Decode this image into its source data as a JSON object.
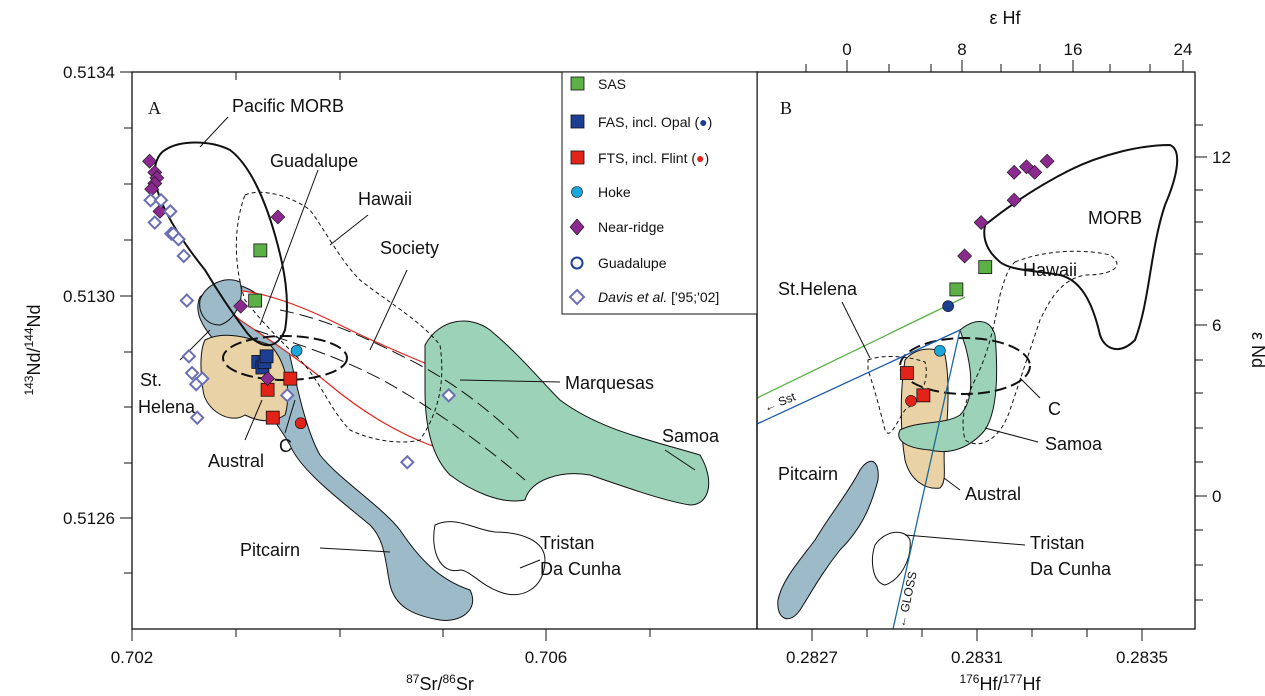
{
  "chart_data": [
    {
      "panel": "A",
      "type": "scatter",
      "xlabel_main": "Sr/",
      "xlabel_num_sup": "87",
      "xlabel_den_sup": "86",
      "xlabel_tail": "Sr",
      "ylabel_num_sup": "143",
      "ylabel_main": "Nd/",
      "ylabel_den_sup": "144",
      "ylabel_tail": "Nd",
      "xlim": [
        0.702,
        0.7067
      ],
      "ylim": [
        0.5124,
        0.5134
      ],
      "x_ticks": [
        "0.702",
        "0.706"
      ],
      "y_ticks": [
        "0.5126",
        "0.5130",
        "0.5134"
      ],
      "regions": [
        "Pacific MORB",
        "Guadalupe",
        "Hawaii",
        "Society",
        "St.",
        "Helena",
        "Austral",
        "C",
        "Marquesas",
        "Samoa",
        "Pitcairn",
        "Tristan",
        "Da Cunha"
      ],
      "series": [
        {
          "name": "SAS",
          "marker": "square",
          "color": "#5cb046",
          "points": [
            [
              0.70319,
              0.51299
            ],
            [
              0.70324,
              0.51308
            ]
          ]
        },
        {
          "name": "FAS, incl. Opal",
          "marker": "square",
          "color": "#1c3f94",
          "points": [
            [
              0.70322,
              0.51288
            ],
            [
              0.70326,
              0.51287
            ],
            [
              0.70328,
              0.51288
            ],
            [
              0.7033,
              0.51289
            ]
          ]
        },
        {
          "name": "FTS, incl. Flint",
          "marker": "square",
          "color": "#e2231a",
          "points": [
            [
              0.70331,
              0.51283
            ],
            [
              0.70353,
              0.51285
            ],
            [
              0.70336,
              0.51278
            ]
          ]
        },
        {
          "name": "Flint",
          "marker": "circle",
          "color": "#e2231a",
          "points": [
            [
              0.70363,
              0.51277
            ]
          ]
        },
        {
          "name": "Hoke",
          "marker": "circle",
          "color": "#1aa7dc",
          "points": [
            [
              0.70359,
              0.5129
            ]
          ]
        },
        {
          "name": "Near-ridge",
          "marker": "diamond",
          "color": "#8b2a8e",
          "points": [
            [
              0.70217,
              0.51324
            ],
            [
              0.70222,
              0.51322
            ],
            [
              0.70224,
              0.51321
            ],
            [
              0.70222,
              0.5132
            ],
            [
              0.70219,
              0.51319
            ],
            [
              0.70227,
              0.51315
            ],
            [
              0.70341,
              0.51314
            ],
            [
              0.70305,
              0.51298
            ],
            [
              0.70331,
              0.51285
            ]
          ]
        },
        {
          "name": "Davis et al. ['95;'02]",
          "marker": "hollow-diamond",
          "color": "#6a6fb2",
          "points": [
            [
              0.70218,
              0.51317
            ],
            [
              0.70222,
              0.51313
            ],
            [
              0.70228,
              0.51317
            ],
            [
              0.70237,
              0.51315
            ],
            [
              0.70238,
              0.51311
            ],
            [
              0.7024,
              0.51311
            ],
            [
              0.70245,
              0.5131
            ],
            [
              0.7025,
              0.51307
            ],
            [
              0.70253,
              0.51299
            ],
            [
              0.70255,
              0.51289
            ],
            [
              0.70258,
              0.51286
            ],
            [
              0.70262,
              0.51284
            ],
            [
              0.70268,
              0.51285
            ],
            [
              0.70263,
              0.51278
            ],
            [
              0.7035,
              0.51282
            ],
            [
              0.70506,
              0.51282
            ],
            [
              0.70466,
              0.5127
            ]
          ]
        }
      ]
    },
    {
      "panel": "B",
      "type": "scatter",
      "xlabel_num_sup": "176",
      "xlabel_main": "Hf/",
      "xlabel_den_sup": "177",
      "xlabel_tail": "Hf",
      "top_xlabel": "ε Hf",
      "right_ylabel": "ε Nd",
      "xlim": [
        0.28252,
        0.2835
      ],
      "x_ticks": [
        "0.2827",
        "0.2831",
        "0.2835"
      ],
      "top_ticks": [
        "0",
        "8",
        "16",
        "24"
      ],
      "right_ticks": [
        "12",
        "6",
        "0"
      ],
      "regions": [
        "MORB",
        "Hawaii",
        "St.Helena",
        "C",
        "Samoa",
        "Austral",
        "Pitcairn",
        "Tristan",
        "Da Cunha"
      ],
      "line_labels": [
        "Sst",
        "GLOSS"
      ],
      "series": [
        {
          "name": "SAS",
          "marker": "square",
          "color": "#5cb046",
          "points": [
            [
              0.28305,
              0.51301
            ],
            [
              0.28312,
              0.51305
            ]
          ]
        },
        {
          "name": "FAS, incl. Opal",
          "marker": "circle",
          "color": "#1c3f94",
          "points": [
            [
              0.28303,
              0.51298
            ]
          ]
        },
        {
          "name": "FTS, incl. Flint",
          "marker": "square",
          "color": "#e2231a",
          "points": [
            [
              0.28293,
              0.51286
            ],
            [
              0.28297,
              0.51282
            ]
          ]
        },
        {
          "name": "Flint",
          "marker": "circle",
          "color": "#e2231a",
          "points": [
            [
              0.28294,
              0.51281
            ]
          ]
        },
        {
          "name": "Hoke",
          "marker": "circle",
          "color": "#1aa7dc",
          "points": [
            [
              0.28301,
              0.5129
            ]
          ]
        },
        {
          "name": "Near-ridge",
          "marker": "diamond",
          "color": "#8b2a8e",
          "points": [
            [
              0.28307,
              0.51307
            ],
            [
              0.28311,
              0.51313
            ],
            [
              0.28319,
              0.51317
            ],
            [
              0.28322,
              0.51323
            ],
            [
              0.28324,
              0.51322
            ],
            [
              0.28327,
              0.51324
            ],
            [
              0.28319,
              0.51322
            ]
          ]
        }
      ]
    }
  ],
  "legend": {
    "items": [
      "SAS",
      "FAS, incl. Opal (",
      "FTS, incl. Flint (",
      "Hoke",
      "Near-ridge",
      "Guadalupe"
    ],
    "davis_italic": "Davis et al.",
    "davis_tail": " ['95;'02]",
    "close_paren": ")"
  },
  "colors": {
    "morb_line": "#000000",
    "pitcairn": "#9cbac8",
    "austral": "#e9d3a6",
    "samoa": "#9cd2b7",
    "society_outline": "#e2231a",
    "sst_line": "#5cb046",
    "gloss_line": "#1c6a9a"
  }
}
